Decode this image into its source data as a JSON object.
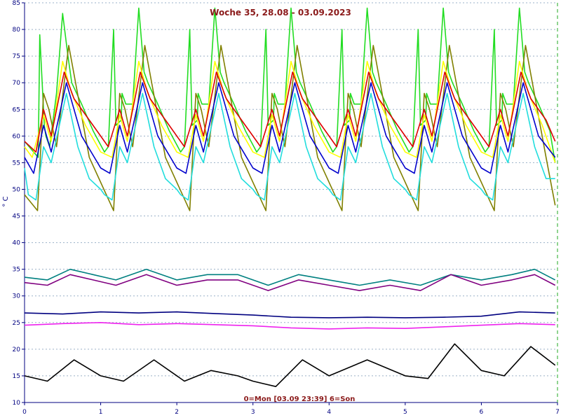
{
  "chart_data": {
    "type": "line",
    "title": "Woche 35, 28.08 - 03.09.2023",
    "xlabel": "0=Mon [03.09 23:39] 6=Son",
    "ylabel": "° C",
    "xlim": [
      0,
      7
    ],
    "ylim": [
      10,
      85
    ],
    "xticks": [
      "0",
      "1",
      "2",
      "3",
      "4",
      "5",
      "6",
      "7"
    ],
    "yticks": [
      "10",
      "15",
      "20",
      "25",
      "30",
      "35",
      "40",
      "45",
      "50",
      "55",
      "60",
      "65",
      "70",
      "75",
      "80",
      "85"
    ],
    "grid": "horizontal, dashed",
    "series": [
      {
        "color": "#22dd22",
        "x": [
          0,
          0.12,
          0.18,
          0.2,
          0.26,
          0.28,
          0.33,
          0.42,
          0.5,
          0.57,
          0.62,
          0.75,
          0.9,
          1.05,
          1.1,
          1.17,
          1.2,
          1.27,
          1.28,
          1.33,
          1.42,
          1.5,
          1.57,
          1.62,
          1.75,
          1.9,
          2.05,
          2.1,
          2.17,
          2.2,
          2.27,
          2.28,
          2.33,
          2.42,
          2.5,
          2.57,
          2.62,
          2.75,
          2.9,
          3.05,
          3.1,
          3.17,
          3.2,
          3.27,
          3.28,
          3.33,
          3.42,
          3.5,
          3.57,
          3.62,
          3.75,
          3.9,
          4.05,
          4.1,
          4.17,
          4.2,
          4.27,
          4.28,
          4.33,
          4.42,
          4.5,
          4.57,
          4.62,
          4.75,
          4.9,
          5.05,
          5.1,
          5.17,
          5.2,
          5.27,
          5.28,
          5.33,
          5.42,
          5.5,
          5.57,
          5.62,
          5.75,
          5.9,
          6.05,
          6.1,
          6.17,
          6.2,
          6.27,
          6.28,
          6.33,
          6.42,
          6.5,
          6.57,
          6.62,
          6.75,
          6.9,
          6.97
        ],
        "values": [
          59,
          57,
          56,
          79,
          62,
          60,
          58,
          68,
          83,
          75,
          70,
          66,
          61,
          57,
          58,
          80,
          62,
          63,
          68,
          66,
          66,
          84,
          72,
          70,
          66,
          61,
          57,
          58,
          80,
          62,
          63,
          68,
          66,
          66,
          84,
          72,
          70,
          66,
          61,
          57,
          58,
          80,
          62,
          63,
          68,
          66,
          66,
          84,
          72,
          70,
          66,
          61,
          57,
          58,
          80,
          62,
          63,
          68,
          66,
          66,
          84,
          72,
          70,
          66,
          61,
          57,
          58,
          80,
          62,
          63,
          68,
          66,
          66,
          84,
          72,
          70,
          66,
          61,
          57,
          58,
          80,
          62,
          63,
          68,
          66,
          66,
          84,
          72,
          70,
          66,
          61,
          55
        ]
      },
      {
        "color": "#808000",
        "x": [
          0,
          0.17,
          0.25,
          0.32,
          0.42,
          0.58,
          0.85,
          1.17,
          1.25,
          1.32,
          1.42,
          1.58,
          1.85,
          2.17,
          2.25,
          2.32,
          2.42,
          2.58,
          2.85,
          3.17,
          3.25,
          3.32,
          3.42,
          3.58,
          3.85,
          4.17,
          4.25,
          4.32,
          4.42,
          4.58,
          4.85,
          5.17,
          5.25,
          5.32,
          5.42,
          5.58,
          5.85,
          6.17,
          6.25,
          6.32,
          6.42,
          6.58,
          6.85,
          6.97
        ],
        "values": [
          49,
          46,
          68,
          65,
          58,
          77,
          56,
          46,
          68,
          65,
          58,
          77,
          56,
          46,
          68,
          65,
          58,
          77,
          56,
          46,
          68,
          65,
          58,
          77,
          56,
          46,
          68,
          65,
          58,
          77,
          56,
          46,
          68,
          65,
          58,
          77,
          56,
          46,
          68,
          65,
          58,
          77,
          56,
          47
        ]
      },
      {
        "color": "#ffff00",
        "x": [
          0,
          0.1,
          0.25,
          0.35,
          0.5,
          0.62,
          0.8,
          1.0,
          1.15,
          1.25,
          1.35,
          1.5,
          1.62,
          1.8,
          2.0,
          2.15,
          2.25,
          2.35,
          2.5,
          2.62,
          2.8,
          3.0,
          3.15,
          3.25,
          3.35,
          3.5,
          3.62,
          3.8,
          4.0,
          4.15,
          4.25,
          4.35,
          4.5,
          4.62,
          4.8,
          5.0,
          5.15,
          5.25,
          5.35,
          5.5,
          5.62,
          5.8,
          6.0,
          6.15,
          6.25,
          6.35,
          6.5,
          6.62,
          6.8,
          6.97
        ],
        "values": [
          58,
          56,
          64,
          59,
          74,
          68,
          62,
          57,
          56,
          64,
          59,
          74,
          68,
          62,
          57,
          56,
          64,
          59,
          74,
          68,
          62,
          57,
          56,
          64,
          59,
          74,
          68,
          62,
          57,
          56,
          64,
          59,
          74,
          68,
          62,
          57,
          56,
          64,
          59,
          74,
          68,
          62,
          57,
          56,
          64,
          59,
          74,
          68,
          62,
          55
        ]
      },
      {
        "color": "#dd0000",
        "x": [
          0,
          0.15,
          0.25,
          0.35,
          0.52,
          0.65,
          0.85,
          1.1,
          1.25,
          1.35,
          1.52,
          1.65,
          1.85,
          2.1,
          2.25,
          2.35,
          2.52,
          2.65,
          2.85,
          3.1,
          3.25,
          3.35,
          3.52,
          3.65,
          3.85,
          4.1,
          4.25,
          4.35,
          4.52,
          4.65,
          4.85,
          5.1,
          5.25,
          5.35,
          5.52,
          5.65,
          5.85,
          6.1,
          6.25,
          6.35,
          6.52,
          6.65,
          6.85,
          6.97
        ],
        "values": [
          59,
          57,
          65,
          60,
          72,
          67,
          63,
          58,
          65,
          60,
          72,
          67,
          63,
          58,
          65,
          60,
          72,
          67,
          63,
          58,
          65,
          60,
          72,
          67,
          63,
          58,
          65,
          60,
          72,
          67,
          63,
          58,
          65,
          60,
          72,
          67,
          63,
          58,
          65,
          60,
          72,
          67,
          63,
          59
        ]
      },
      {
        "color": "#0000cc",
        "x": [
          0,
          0.12,
          0.25,
          0.35,
          0.55,
          0.75,
          1.0,
          1.12,
          1.25,
          1.35,
          1.55,
          1.75,
          2.0,
          2.12,
          2.25,
          2.35,
          2.55,
          2.75,
          3.0,
          3.12,
          3.25,
          3.35,
          3.55,
          3.75,
          4.0,
          4.12,
          4.25,
          4.35,
          4.55,
          4.75,
          5.0,
          5.12,
          5.25,
          5.35,
          5.55,
          5.75,
          6.0,
          6.12,
          6.25,
          6.35,
          6.55,
          6.75,
          6.97
        ],
        "values": [
          56,
          53,
          62,
          57,
          70,
          60,
          54,
          53,
          62,
          57,
          70,
          60,
          54,
          53,
          62,
          57,
          70,
          60,
          54,
          53,
          62,
          57,
          70,
          60,
          54,
          53,
          62,
          57,
          70,
          60,
          54,
          53,
          62,
          57,
          70,
          60,
          54,
          53,
          62,
          57,
          70,
          60,
          56
        ]
      },
      {
        "color": "#22dddd",
        "x": [
          0,
          0.05,
          0.15,
          0.25,
          0.35,
          0.55,
          0.7,
          0.85,
          1.0,
          1.05,
          1.15,
          1.25,
          1.35,
          1.55,
          1.7,
          1.85,
          2.0,
          2.05,
          2.15,
          2.25,
          2.35,
          2.55,
          2.7,
          2.85,
          3.0,
          3.05,
          3.15,
          3.25,
          3.35,
          3.55,
          3.7,
          3.85,
          4.0,
          4.05,
          4.15,
          4.25,
          4.35,
          4.55,
          4.7,
          4.85,
          5.0,
          5.05,
          5.15,
          5.25,
          5.35,
          5.55,
          5.7,
          5.85,
          6.0,
          6.05,
          6.15,
          6.25,
          6.35,
          6.55,
          6.7,
          6.85,
          6.97
        ],
        "values": [
          54,
          49,
          48,
          58,
          55,
          68,
          58,
          52,
          50,
          49,
          48,
          58,
          55,
          68,
          58,
          52,
          50,
          49,
          48,
          58,
          55,
          68,
          58,
          52,
          50,
          49,
          48,
          58,
          55,
          68,
          58,
          52,
          50,
          49,
          48,
          58,
          55,
          68,
          58,
          52,
          50,
          49,
          48,
          58,
          55,
          68,
          58,
          52,
          50,
          49,
          48,
          58,
          55,
          68,
          58,
          52,
          52
        ]
      },
      {
        "color": "#008080",
        "x": [
          0,
          0.3,
          0.6,
          0.9,
          1.2,
          1.6,
          2.0,
          2.4,
          2.8,
          3.2,
          3.6,
          4.0,
          4.4,
          4.8,
          5.2,
          5.6,
          6.0,
          6.4,
          6.7,
          6.97
        ],
        "values": [
          33.5,
          33,
          35,
          34,
          33,
          35,
          33,
          34,
          34,
          32,
          34,
          33,
          32,
          33,
          32,
          34,
          33,
          34,
          35,
          33
        ]
      },
      {
        "color": "#800080",
        "x": [
          0,
          0.3,
          0.6,
          0.9,
          1.2,
          1.6,
          2.0,
          2.4,
          2.8,
          3.2,
          3.6,
          4.0,
          4.4,
          4.8,
          5.2,
          5.6,
          6.0,
          6.4,
          6.7,
          6.97
        ],
        "values": [
          32.5,
          32,
          34,
          33,
          32,
          34,
          32,
          33,
          33,
          31,
          33,
          32,
          31,
          32,
          31,
          34,
          32,
          33,
          34,
          32
        ]
      },
      {
        "color": "#000080",
        "x": [
          0,
          0.5,
          1.0,
          1.5,
          2.0,
          2.5,
          3.0,
          3.5,
          4.0,
          4.5,
          5.0,
          5.5,
          6.0,
          6.5,
          6.97
        ],
        "values": [
          26.8,
          26.6,
          27,
          26.8,
          27,
          26.7,
          26.4,
          26,
          25.9,
          26,
          25.9,
          26,
          26.2,
          27,
          26.8
        ]
      },
      {
        "color": "#ee22ee",
        "x": [
          0,
          0.5,
          1.0,
          1.5,
          2.0,
          2.5,
          3.0,
          3.5,
          4.0,
          4.5,
          5.0,
          5.5,
          6.0,
          6.5,
          6.97
        ],
        "values": [
          24.5,
          24.8,
          25,
          24.6,
          24.8,
          24.6,
          24.4,
          24,
          23.8,
          24,
          23.9,
          24.2,
          24.5,
          24.8,
          24.6
        ]
      },
      {
        "color": "#000000",
        "x": [
          0,
          0.3,
          0.65,
          1.0,
          1.3,
          1.7,
          2.1,
          2.45,
          2.8,
          3.0,
          3.3,
          3.65,
          4.0,
          4.5,
          5.0,
          5.3,
          5.65,
          6.0,
          6.3,
          6.65,
          6.97
        ],
        "values": [
          15,
          14,
          18,
          15,
          14,
          18,
          14,
          16,
          15,
          14,
          13,
          18,
          15,
          18,
          15,
          14.5,
          21,
          16,
          15,
          20.5,
          17
        ]
      }
    ]
  }
}
